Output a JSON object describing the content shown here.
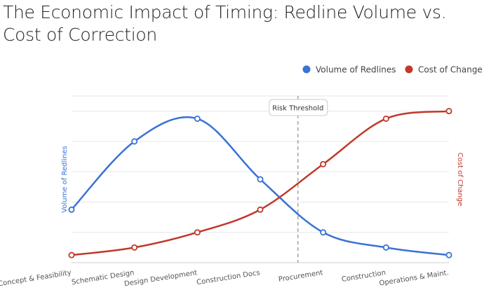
{
  "chart_data": {
    "type": "line",
    "title": "The Economic Impact of Timing: Redline Volume vs. Cost of Correction",
    "categories": [
      "Concept & Feasibility",
      "Schematic Design",
      "Design Development",
      "Construction Docs",
      "Procurement",
      "Construction",
      "Operations & Maint."
    ],
    "series": [
      {
        "name": "Volume of Redlines",
        "color": "#3a72d6",
        "values": [
          35,
          80,
          95,
          55,
          20,
          10,
          5
        ],
        "axis": "left"
      },
      {
        "name": "Cost of Change",
        "color": "#c0392b",
        "values": [
          5,
          10,
          20,
          35,
          65,
          95,
          100
        ],
        "axis": "right"
      }
    ],
    "ylabel_left": "Volume of Redlines",
    "ylabel_right": "Cost of Change",
    "ylim": [
      0,
      110
    ],
    "grid": true,
    "smooth": true,
    "legend": "top-right",
    "annotation": {
      "label": "Risk Threshold",
      "x_category_position": 3.6,
      "style": "dashed-vertical"
    }
  }
}
